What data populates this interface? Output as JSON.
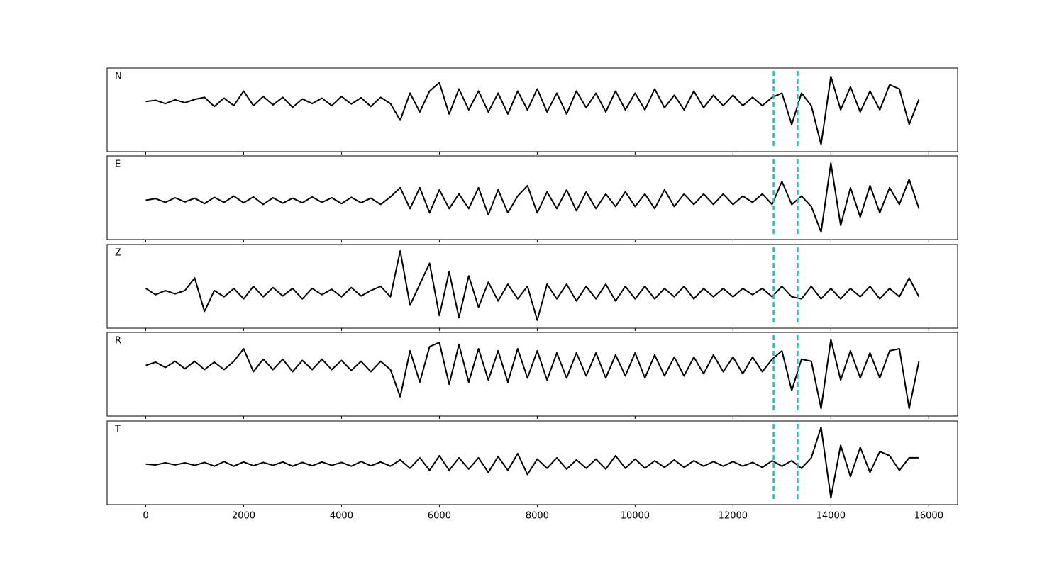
{
  "chart_data": {
    "type": "line",
    "x": [
      0,
      200,
      400,
      600,
      800,
      1000,
      1200,
      1400,
      1600,
      1800,
      2000,
      2200,
      2400,
      2600,
      2800,
      3000,
      3200,
      3400,
      3600,
      3800,
      4000,
      4200,
      4400,
      4600,
      4800,
      5000,
      5200,
      5400,
      5600,
      5800,
      6000,
      6200,
      6400,
      6600,
      6800,
      7000,
      7200,
      7400,
      7600,
      7800,
      8000,
      8200,
      8400,
      8600,
      8800,
      9000,
      9200,
      9400,
      9600,
      9800,
      10000,
      10200,
      10400,
      10600,
      10800,
      11000,
      11200,
      11400,
      11600,
      11800,
      12000,
      12200,
      12400,
      12600,
      12800,
      13000,
      13200,
      13400,
      13600,
      13800,
      14000,
      14200,
      14400,
      14600,
      14800,
      15000,
      15200,
      15400,
      15600,
      15800
    ],
    "xlim": [
      -790,
      16590
    ],
    "xticks": [
      0,
      2000,
      4000,
      6000,
      8000,
      10000,
      12000,
      14000,
      16000
    ],
    "markers": [
      12830,
      13320
    ],
    "marker_color": "#17bfbf",
    "series": [
      {
        "name": "N",
        "color": "#000000",
        "ylim": [
          -1.2,
          0.8
        ],
        "values": [
          0,
          0.03,
          -0.05,
          0.04,
          -0.03,
          0.05,
          0.1,
          -0.12,
          0.08,
          -0.1,
          0.25,
          -0.1,
          0.12,
          -0.08,
          0.1,
          -0.14,
          0.06,
          -0.05,
          0.08,
          -0.1,
          0.12,
          -0.06,
          0.09,
          -0.12,
          0.1,
          -0.05,
          -0.45,
          0.2,
          -0.25,
          0.25,
          0.45,
          -0.3,
          0.3,
          -0.2,
          0.25,
          -0.25,
          0.2,
          -0.3,
          0.25,
          -0.2,
          0.3,
          -0.25,
          0.2,
          -0.3,
          0.25,
          -0.15,
          0.2,
          -0.25,
          0.25,
          -0.2,
          0.2,
          -0.2,
          0.3,
          -0.15,
          0.15,
          -0.2,
          0.25,
          -0.15,
          0.15,
          -0.1,
          0.15,
          -0.1,
          0.1,
          -0.1,
          0.1,
          0.2,
          -0.55,
          0.2,
          -0.1,
          -1.03,
          0.6,
          -0.2,
          0.35,
          -0.25,
          0.25,
          -0.2,
          0.4,
          0.3,
          -0.55,
          0.05
        ]
      },
      {
        "name": "E",
        "color": "#000000",
        "ylim": [
          -0.94,
          1.06
        ],
        "values": [
          0,
          0.04,
          -0.05,
          0.06,
          -0.04,
          0.05,
          -0.08,
          0.07,
          -0.05,
          0.1,
          -0.06,
          0.08,
          -0.1,
          0.06,
          -0.07,
          0.05,
          -0.06,
          0.08,
          -0.05,
          0.06,
          -0.08,
          0.07,
          -0.06,
          0.05,
          -0.1,
          0.08,
          0.3,
          -0.2,
          0.3,
          -0.3,
          0.25,
          -0.2,
          0.15,
          -0.2,
          0.3,
          -0.35,
          0.25,
          -0.3,
          0.1,
          0.35,
          -0.3,
          0.2,
          -0.2,
          0.25,
          -0.25,
          0.2,
          -0.2,
          0.15,
          -0.15,
          0.2,
          -0.15,
          0.15,
          -0.2,
          0.25,
          -0.15,
          0.15,
          -0.1,
          0.15,
          -0.1,
          0.15,
          -0.1,
          0.1,
          -0.05,
          0.15,
          -0.1,
          0.45,
          -0.1,
          0.1,
          -0.15,
          -0.76,
          0.89,
          -0.6,
          0.3,
          -0.4,
          0.35,
          -0.3,
          0.3,
          -0.1,
          0.5,
          -0.2
        ]
      },
      {
        "name": "Z",
        "color": "#000000",
        "ylim": [
          -0.85,
          1.15
        ],
        "values": [
          0.1,
          -0.05,
          0.05,
          -0.03,
          0.05,
          0.35,
          -0.45,
          0.05,
          -0.1,
          0.1,
          -0.15,
          0.15,
          -0.1,
          0.12,
          -0.08,
          0.1,
          -0.15,
          0.1,
          -0.05,
          0.08,
          -0.1,
          0.12,
          -0.08,
          0.05,
          0.15,
          -0.1,
          1.0,
          -0.3,
          0.2,
          0.7,
          -0.55,
          0.5,
          -0.6,
          0.4,
          -0.35,
          0.25,
          -0.2,
          0.2,
          -0.15,
          0.15,
          -0.66,
          0.2,
          -0.15,
          0.2,
          -0.2,
          0.15,
          -0.15,
          0.2,
          -0.2,
          0.15,
          -0.15,
          0.15,
          -0.15,
          0.1,
          -0.1,
          0.15,
          -0.15,
          0.1,
          -0.1,
          0.1,
          -0.1,
          0.1,
          -0.05,
          0.1,
          -0.1,
          0.15,
          -0.1,
          -0.15,
          0.15,
          -0.15,
          0.1,
          -0.15,
          0.1,
          -0.1,
          0.15,
          -0.15,
          0.1,
          -0.1,
          0.35,
          -0.1
        ]
      },
      {
        "name": "R",
        "color": "#000000",
        "ylim": [
          -1.21,
          0.79
        ],
        "values": [
          0,
          0.08,
          -0.05,
          0.1,
          -0.08,
          0.1,
          -0.1,
          0.08,
          -0.1,
          0.1,
          0.4,
          -0.15,
          0.15,
          -0.1,
          0.15,
          -0.15,
          0.12,
          -0.1,
          0.15,
          -0.1,
          0.12,
          -0.12,
          0.1,
          -0.15,
          0.1,
          -0.1,
          -0.75,
          0.35,
          -0.4,
          0.45,
          0.55,
          -0.45,
          0.5,
          -0.4,
          0.4,
          -0.35,
          0.35,
          -0.4,
          0.4,
          -0.3,
          0.35,
          -0.35,
          0.3,
          -0.3,
          0.3,
          -0.25,
          0.3,
          -0.3,
          0.25,
          -0.25,
          0.3,
          -0.3,
          0.25,
          -0.25,
          0.2,
          -0.25,
          0.2,
          -0.2,
          0.25,
          -0.15,
          0.2,
          -0.2,
          0.2,
          -0.15,
          0.15,
          0.35,
          -0.6,
          0.15,
          0.1,
          -1.03,
          0.62,
          -0.35,
          0.35,
          -0.3,
          0.3,
          -0.3,
          0.35,
          0.4,
          -1.03,
          0.1
        ]
      },
      {
        "name": "T",
        "color": "#000000",
        "ylim": [
          -0.97,
          1.03
        ],
        "values": [
          0,
          -0.02,
          0.03,
          -0.02,
          0.03,
          -0.03,
          0.04,
          -0.05,
          0.06,
          -0.05,
          0.05,
          -0.04,
          0.04,
          -0.03,
          0.05,
          -0.05,
          0.04,
          -0.04,
          0.05,
          -0.03,
          0.04,
          -0.05,
          0.06,
          -0.04,
          0.05,
          -0.05,
          0.1,
          -0.1,
          0.15,
          -0.15,
          0.2,
          -0.15,
          0.15,
          -0.12,
          0.15,
          -0.2,
          0.18,
          -0.15,
          0.25,
          -0.25,
          0.12,
          -0.1,
          0.15,
          -0.12,
          0.1,
          -0.1,
          0.12,
          -0.12,
          0.2,
          -0.1,
          0.12,
          -0.1,
          0.08,
          -0.08,
          0.1,
          -0.08,
          0.08,
          -0.05,
          0.06,
          -0.05,
          0.06,
          -0.05,
          0.04,
          -0.08,
          0.08,
          -0.05,
          0.08,
          -0.1,
          0.15,
          0.88,
          -0.81,
          0.45,
          -0.3,
          0.4,
          -0.2,
          0.3,
          0.2,
          -0.15,
          0.15,
          0.15
        ]
      }
    ]
  }
}
